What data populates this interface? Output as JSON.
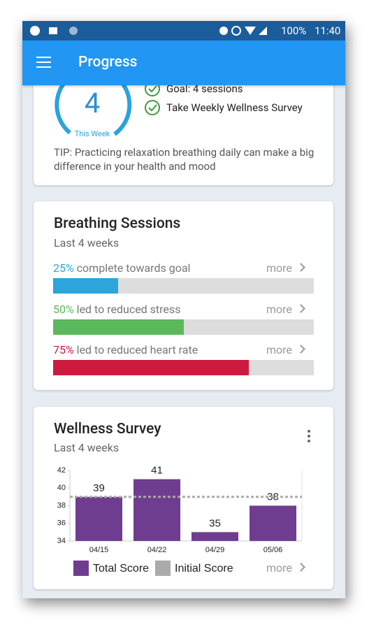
{
  "status_bar": {
    "battery": "100%",
    "time": "11:40"
  },
  "app_bar": {
    "title": "Progress"
  },
  "weekly_card": {
    "count": 4,
    "count_label": "This Week",
    "checklist": [
      "Goal: 4 sessions",
      "Take Weekly Wellness Survey"
    ],
    "tip": "TIP: Practicing relaxation breathing daily can make a big difference in your health and mood"
  },
  "breathing_card": {
    "title": "Breathing Sessions",
    "subtitle": "Last 4 weeks",
    "items": [
      {
        "value": 25,
        "value_label": "25%",
        "text": "complete towards goal",
        "more": "more",
        "color": "#2ca4dc"
      },
      {
        "value": 50,
        "value_label": "50%",
        "text": "led to reduced stress",
        "more": "more",
        "color": "#5cb85c"
      },
      {
        "value": 75,
        "value_label": "75%",
        "text": "led to reduced heart rate",
        "more": "more",
        "color": "#cc1b3f"
      }
    ]
  },
  "survey_card": {
    "title": "Wellness Survey",
    "subtitle": "Last 4 weeks",
    "more": "more",
    "chart": {
      "type": "bar",
      "categories": [
        "04/15",
        "04/22",
        "04/29",
        "05/06"
      ],
      "series": [
        {
          "name": "Total Score",
          "color": "#6f3d8f",
          "values": [
            39,
            41,
            35,
            38
          ]
        }
      ],
      "reference": {
        "name": "Initial Score",
        "color": "#aaaaaa",
        "value": 39
      },
      "ylim": [
        34,
        42
      ],
      "yticks": [
        34,
        36,
        38,
        40,
        42
      ]
    }
  }
}
